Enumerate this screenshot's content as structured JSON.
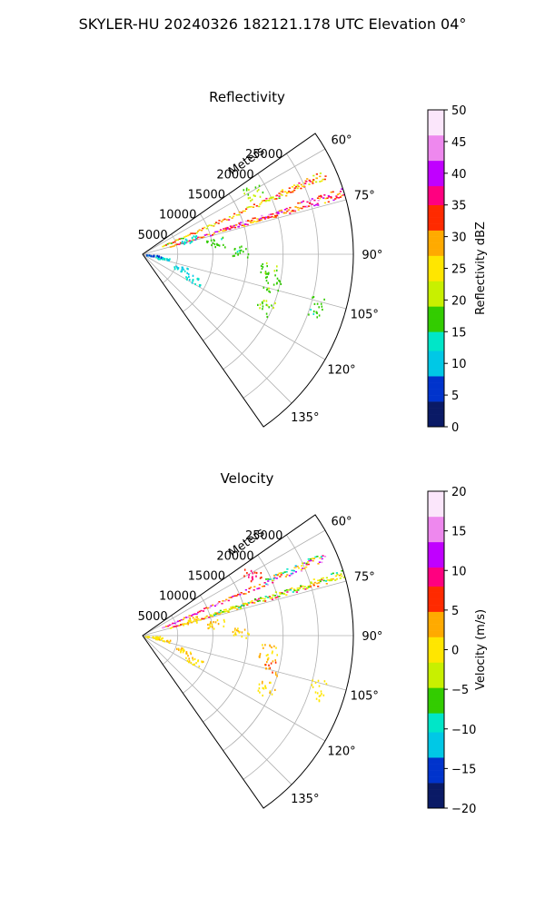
{
  "figure": {
    "title": "SKYLER-HU  20240326  182121.178 UTC Elevation 04°"
  },
  "chart_data": [
    {
      "type": "polar-sector",
      "title": "Reflectivity",
      "range_label": "Meters",
      "r_ticks": [
        5000,
        10000,
        15000,
        20000,
        25000
      ],
      "r_tick_labels": [
        "5000",
        "10000",
        "15000",
        "20000",
        "25000"
      ],
      "r_max": 30000,
      "theta_range_deg": [
        55,
        145
      ],
      "theta_ticks": [
        60,
        75,
        90,
        105,
        120,
        135
      ],
      "theta_tick_labels": [
        "60°",
        "75°",
        "90°",
        "105°",
        "120°",
        "135°"
      ],
      "grid": true,
      "colorbar": {
        "label": "Reflectivity dBZ",
        "range": [
          0,
          50
        ],
        "ticks": [
          0,
          5,
          10,
          15,
          20,
          25,
          30,
          35,
          40,
          45,
          50
        ],
        "tick_labels": [
          "0",
          "5",
          "10",
          "15",
          "20",
          "25",
          "30",
          "35",
          "40",
          "45",
          "50"
        ],
        "palette": [
          "#0a1a66",
          "#0033cc",
          "#00c8e6",
          "#00e6c8",
          "#33cc00",
          "#c8f000",
          "#ffe600",
          "#ffaa00",
          "#ff2a00",
          "#ff0080",
          "#c000ff",
          "#ee88ee",
          "#fbe6fb"
        ]
      },
      "features": [
        {
          "kind": "ray",
          "az_deg": 73,
          "r0": 4000,
          "r1": 30000,
          "value": 33
        },
        {
          "kind": "ray",
          "az_deg": 72.5,
          "r0": 12000,
          "r1": 30000,
          "value": 36
        },
        {
          "kind": "ray",
          "az_deg": 66.5,
          "r0": 3000,
          "r1": 28500,
          "value": 26
        },
        {
          "kind": "ray",
          "az_deg": 66,
          "r0": 19000,
          "r1": 28000,
          "value": 29
        },
        {
          "kind": "cluster",
          "az_deg": 72,
          "r": 7000,
          "value": 13
        },
        {
          "kind": "cluster",
          "az_deg": 116,
          "r": 8000,
          "value": 12
        },
        {
          "kind": "cluster",
          "az_deg": 110,
          "r": 6000,
          "value": 11
        },
        {
          "kind": "cluster",
          "az_deg": 101,
          "r": 3000,
          "value": 12
        },
        {
          "kind": "cluster",
          "az_deg": 95,
          "r": 1600,
          "value": 7
        },
        {
          "kind": "cluster",
          "az_deg": 88,
          "r": 14000,
          "value": 17
        },
        {
          "kind": "cluster",
          "az_deg": 81,
          "r": 10500,
          "value": 17
        },
        {
          "kind": "cluster",
          "az_deg": 60,
          "r": 18000,
          "value": 20
        },
        {
          "kind": "cluster",
          "az_deg": 103,
          "r": 19000,
          "value": 18
        },
        {
          "kind": "cluster",
          "az_deg": 113,
          "r": 19000,
          "value": 19
        },
        {
          "kind": "cluster",
          "az_deg": 107,
          "r": 26000,
          "value": 17
        },
        {
          "kind": "cluster",
          "az_deg": 97,
          "r": 18000,
          "value": 18
        }
      ]
    },
    {
      "type": "polar-sector",
      "title": "Velocity",
      "range_label": "Meters",
      "r_ticks": [
        5000,
        10000,
        15000,
        20000,
        25000
      ],
      "r_tick_labels": [
        "5000",
        "10000",
        "15000",
        "20000",
        "25000"
      ],
      "r_max": 30000,
      "theta_range_deg": [
        55,
        145
      ],
      "theta_ticks": [
        60,
        75,
        90,
        105,
        120,
        135
      ],
      "theta_tick_labels": [
        "60°",
        "75°",
        "90°",
        "105°",
        "120°",
        "135°"
      ],
      "grid": true,
      "colorbar": {
        "label": "Velocity (m/s)",
        "range": [
          -20,
          20
        ],
        "ticks": [
          -20,
          -15,
          -10,
          -5,
          0,
          5,
          10,
          15,
          20
        ],
        "tick_labels": [
          "−20",
          "−15",
          "−10",
          "−5",
          "0",
          "5",
          "10",
          "15",
          "20"
        ],
        "palette": [
          "#0a1a66",
          "#0033cc",
          "#00c8e6",
          "#00e6c8",
          "#33cc00",
          "#c8f000",
          "#ffe600",
          "#ffaa00",
          "#ff2a00",
          "#ff0080",
          "#c000ff",
          "#ee88ee",
          "#fbe6fb"
        ]
      },
      "features": [
        {
          "kind": "ray",
          "az_deg": 73,
          "r0": 4000,
          "r1": 30000,
          "value": 3
        },
        {
          "kind": "ray",
          "az_deg": 72.5,
          "r0": 10000,
          "r1": 30000,
          "value": -4
        },
        {
          "kind": "ray",
          "az_deg": 66.5,
          "r0": 3000,
          "r1": 28500,
          "value": 9
        },
        {
          "kind": "ray",
          "az_deg": 66,
          "r0": 19000,
          "r1": 28000,
          "value": -5
        },
        {
          "kind": "cluster",
          "az_deg": 72,
          "r": 7000,
          "value": 1
        },
        {
          "kind": "cluster",
          "az_deg": 116,
          "r": 8000,
          "value": 1
        },
        {
          "kind": "cluster",
          "az_deg": 110,
          "r": 6000,
          "value": 1
        },
        {
          "kind": "cluster",
          "az_deg": 101,
          "r": 3000,
          "value": 1
        },
        {
          "kind": "cluster",
          "az_deg": 95,
          "r": 1600,
          "value": 0
        },
        {
          "kind": "cluster",
          "az_deg": 88,
          "r": 14000,
          "value": 1
        },
        {
          "kind": "cluster",
          "az_deg": 81,
          "r": 10500,
          "value": 1
        },
        {
          "kind": "cluster",
          "az_deg": 60,
          "r": 18000,
          "value": 8
        },
        {
          "kind": "cluster",
          "az_deg": 103,
          "r": 19000,
          "value": 4
        },
        {
          "kind": "cluster",
          "az_deg": 113,
          "r": 19000,
          "value": 1
        },
        {
          "kind": "cluster",
          "az_deg": 107,
          "r": 26000,
          "value": 0
        },
        {
          "kind": "cluster",
          "az_deg": 97,
          "r": 18000,
          "value": 2
        }
      ]
    }
  ]
}
